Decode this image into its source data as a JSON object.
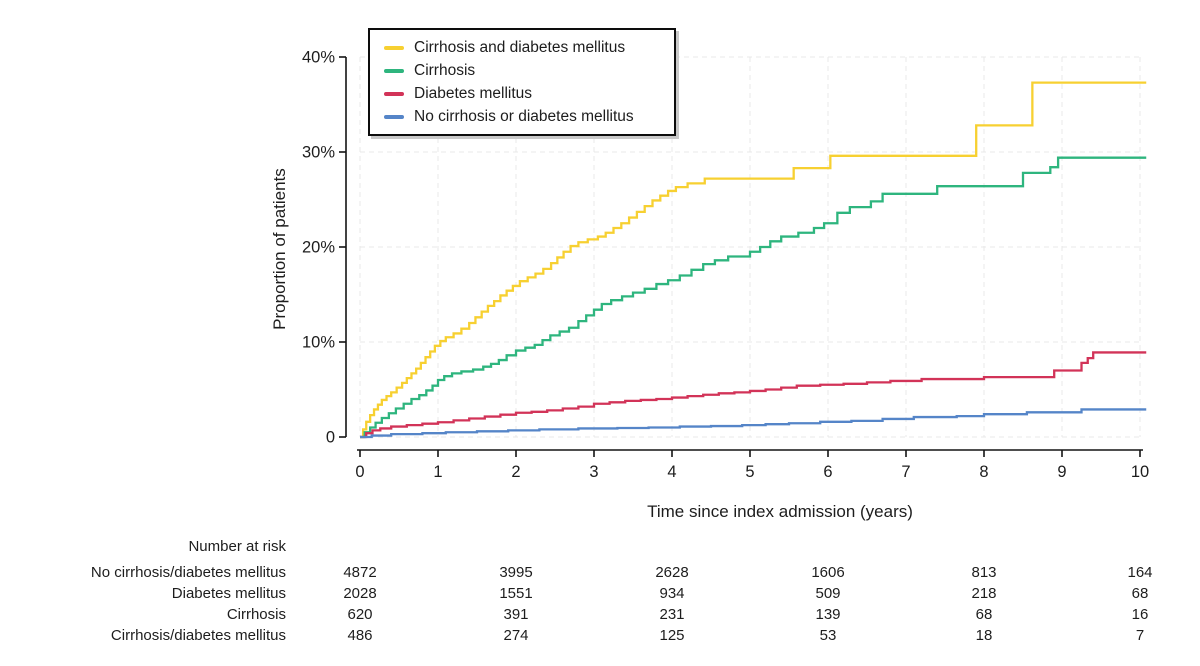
{
  "chart_data": {
    "type": "line",
    "subtype": "kaplan-meier-step-curves",
    "title": "",
    "xlabel": "Time since index admission (years)",
    "ylabel": "Proportion of patients",
    "xlim": [
      0,
      10.08
    ],
    "ylim": [
      0,
      40
    ],
    "x_ticks": [
      0,
      1,
      2,
      3,
      4,
      5,
      6,
      7,
      8,
      9,
      10
    ],
    "y_ticks": [
      {
        "value": 0,
        "label": "0"
      },
      {
        "value": 10,
        "label": "10%"
      },
      {
        "value": 20,
        "label": "20%"
      },
      {
        "value": 30,
        "label": "30%"
      },
      {
        "value": 40,
        "label": "40%"
      }
    ],
    "grid": "dashed gridlines at every year (vertical) and every 10% (horizontal)",
    "legend_position": "top-left inside plot, boxed",
    "step_mode": "step-after",
    "series": [
      {
        "name": "Cirrhosis and diabetes mellitus",
        "color": "#f7d031",
        "points": [
          [
            0,
            0
          ],
          [
            0.04,
            0.8
          ],
          [
            0.08,
            1.6
          ],
          [
            0.13,
            2.3
          ],
          [
            0.18,
            2.9
          ],
          [
            0.23,
            3.4
          ],
          [
            0.28,
            3.9
          ],
          [
            0.34,
            4.3
          ],
          [
            0.4,
            4.7
          ],
          [
            0.47,
            5.2
          ],
          [
            0.54,
            5.7
          ],
          [
            0.6,
            6.2
          ],
          [
            0.66,
            6.7
          ],
          [
            0.72,
            7.2
          ],
          [
            0.78,
            7.8
          ],
          [
            0.84,
            8.4
          ],
          [
            0.9,
            9.0
          ],
          [
            0.96,
            9.6
          ],
          [
            1.03,
            10.1
          ],
          [
            1.1,
            10.5
          ],
          [
            1.2,
            10.9
          ],
          [
            1.3,
            11.4
          ],
          [
            1.4,
            12.0
          ],
          [
            1.48,
            12.6
          ],
          [
            1.56,
            13.2
          ],
          [
            1.64,
            13.8
          ],
          [
            1.72,
            14.3
          ],
          [
            1.8,
            14.9
          ],
          [
            1.88,
            15.4
          ],
          [
            1.96,
            15.9
          ],
          [
            2.05,
            16.4
          ],
          [
            2.15,
            16.8
          ],
          [
            2.25,
            17.2
          ],
          [
            2.35,
            17.7
          ],
          [
            2.45,
            18.3
          ],
          [
            2.53,
            18.9
          ],
          [
            2.61,
            19.5
          ],
          [
            2.7,
            20.1
          ],
          [
            2.8,
            20.5
          ],
          [
            2.92,
            20.8
          ],
          [
            3.05,
            21.1
          ],
          [
            3.15,
            21.5
          ],
          [
            3.25,
            22.0
          ],
          [
            3.35,
            22.5
          ],
          [
            3.45,
            23.1
          ],
          [
            3.55,
            23.7
          ],
          [
            3.65,
            24.3
          ],
          [
            3.75,
            24.9
          ],
          [
            3.85,
            25.4
          ],
          [
            3.95,
            25.9
          ],
          [
            4.05,
            26.3
          ],
          [
            4.2,
            26.7
          ],
          [
            4.42,
            27.2
          ],
          [
            5.56,
            28.3
          ],
          [
            6.03,
            29.6
          ],
          [
            7.9,
            32.8
          ],
          [
            8.62,
            37.3
          ]
        ]
      },
      {
        "name": "Cirrhosis",
        "color": "#2eb57e",
        "points": [
          [
            0,
            0
          ],
          [
            0.06,
            0.5
          ],
          [
            0.13,
            1.0
          ],
          [
            0.2,
            1.5
          ],
          [
            0.28,
            2.0
          ],
          [
            0.37,
            2.5
          ],
          [
            0.46,
            3.0
          ],
          [
            0.56,
            3.5
          ],
          [
            0.66,
            4.0
          ],
          [
            0.76,
            4.4
          ],
          [
            0.85,
            4.9
          ],
          [
            0.93,
            5.4
          ],
          [
            1.0,
            6.0
          ],
          [
            1.08,
            6.4
          ],
          [
            1.18,
            6.7
          ],
          [
            1.3,
            6.9
          ],
          [
            1.45,
            7.1
          ],
          [
            1.58,
            7.4
          ],
          [
            1.68,
            7.7
          ],
          [
            1.78,
            8.1
          ],
          [
            1.88,
            8.6
          ],
          [
            2.0,
            9.1
          ],
          [
            2.12,
            9.4
          ],
          [
            2.24,
            9.7
          ],
          [
            2.34,
            10.2
          ],
          [
            2.44,
            10.7
          ],
          [
            2.56,
            11.1
          ],
          [
            2.68,
            11.5
          ],
          [
            2.8,
            12.2
          ],
          [
            2.9,
            12.8
          ],
          [
            3.0,
            13.4
          ],
          [
            3.1,
            14.0
          ],
          [
            3.22,
            14.4
          ],
          [
            3.36,
            14.8
          ],
          [
            3.5,
            15.2
          ],
          [
            3.65,
            15.6
          ],
          [
            3.8,
            16.1
          ],
          [
            3.95,
            16.5
          ],
          [
            4.1,
            17.0
          ],
          [
            4.25,
            17.6
          ],
          [
            4.4,
            18.2
          ],
          [
            4.55,
            18.6
          ],
          [
            4.72,
            19.0
          ],
          [
            5.0,
            19.5
          ],
          [
            5.13,
            20.0
          ],
          [
            5.26,
            20.6
          ],
          [
            5.4,
            21.1
          ],
          [
            5.62,
            21.5
          ],
          [
            5.82,
            22.0
          ],
          [
            5.95,
            22.5
          ],
          [
            6.12,
            23.6
          ],
          [
            6.28,
            24.2
          ],
          [
            6.55,
            24.8
          ],
          [
            6.7,
            25.6
          ],
          [
            7.4,
            26.4
          ],
          [
            8.5,
            27.8
          ],
          [
            8.85,
            28.4
          ],
          [
            8.95,
            29.4
          ]
        ]
      },
      {
        "name": "Diabetes mellitus",
        "color": "#d23358",
        "points": [
          [
            0,
            0
          ],
          [
            0.08,
            0.4
          ],
          [
            0.16,
            0.7
          ],
          [
            0.26,
            0.9
          ],
          [
            0.4,
            1.1
          ],
          [
            0.6,
            1.25
          ],
          [
            0.8,
            1.4
          ],
          [
            1.0,
            1.55
          ],
          [
            1.2,
            1.75
          ],
          [
            1.4,
            1.95
          ],
          [
            1.6,
            2.15
          ],
          [
            1.8,
            2.35
          ],
          [
            2.0,
            2.55
          ],
          [
            2.2,
            2.65
          ],
          [
            2.4,
            2.8
          ],
          [
            2.6,
            3.0
          ],
          [
            2.8,
            3.2
          ],
          [
            3.0,
            3.5
          ],
          [
            3.2,
            3.65
          ],
          [
            3.4,
            3.8
          ],
          [
            3.6,
            3.9
          ],
          [
            3.8,
            4.0
          ],
          [
            4.0,
            4.15
          ],
          [
            4.2,
            4.3
          ],
          [
            4.4,
            4.45
          ],
          [
            4.6,
            4.6
          ],
          [
            4.8,
            4.7
          ],
          [
            5.0,
            4.85
          ],
          [
            5.2,
            5.0
          ],
          [
            5.4,
            5.2
          ],
          [
            5.6,
            5.4
          ],
          [
            5.9,
            5.5
          ],
          [
            6.2,
            5.6
          ],
          [
            6.5,
            5.75
          ],
          [
            6.8,
            5.9
          ],
          [
            7.2,
            6.1
          ],
          [
            8.0,
            6.3
          ],
          [
            8.9,
            7.0
          ],
          [
            9.25,
            7.8
          ],
          [
            9.33,
            8.3
          ],
          [
            9.4,
            8.9
          ]
        ]
      },
      {
        "name": "No cirrhosis or diabetes mellitus",
        "color": "#5585c8",
        "points": [
          [
            0,
            0
          ],
          [
            0.15,
            0.15
          ],
          [
            0.4,
            0.3
          ],
          [
            0.8,
            0.4
          ],
          [
            1.1,
            0.5
          ],
          [
            1.5,
            0.6
          ],
          [
            1.9,
            0.7
          ],
          [
            2.3,
            0.8
          ],
          [
            2.8,
            0.9
          ],
          [
            3.3,
            0.95
          ],
          [
            3.7,
            1.0
          ],
          [
            4.1,
            1.1
          ],
          [
            4.5,
            1.15
          ],
          [
            4.9,
            1.25
          ],
          [
            5.2,
            1.35
          ],
          [
            5.5,
            1.45
          ],
          [
            5.9,
            1.6
          ],
          [
            6.3,
            1.7
          ],
          [
            6.7,
            1.9
          ],
          [
            7.1,
            2.1
          ],
          [
            7.65,
            2.2
          ],
          [
            8.0,
            2.4
          ],
          [
            8.55,
            2.6
          ],
          [
            9.25,
            2.9
          ]
        ]
      }
    ]
  },
  "legend": {
    "items": [
      {
        "label": "Cirrhosis and diabetes mellitus",
        "color": "#f7d031"
      },
      {
        "label": "Cirrhosis",
        "color": "#2eb57e"
      },
      {
        "label": "Diabetes mellitus",
        "color": "#d23358"
      },
      {
        "label": "No cirrhosis or diabetes mellitus",
        "color": "#5585c8"
      }
    ]
  },
  "risk_table": {
    "title": "Number at risk",
    "time_points": [
      0,
      2,
      4,
      6,
      8,
      10
    ],
    "rows": [
      {
        "label": "No cirrhosis/diabetes mellitus",
        "values": [
          "4872",
          "3995",
          "2628",
          "1606",
          "813",
          "164"
        ]
      },
      {
        "label": "Diabetes mellitus",
        "values": [
          "2028",
          "1551",
          "934",
          "509",
          "218",
          "68"
        ]
      },
      {
        "label": "Cirrhosis",
        "values": [
          "620",
          "391",
          "231",
          "139",
          "68",
          "16"
        ]
      },
      {
        "label": "Cirrhosis/diabetes mellitus",
        "values": [
          "486",
          "274",
          "125",
          "53",
          "18",
          "7"
        ]
      }
    ]
  },
  "style": {
    "axis_color": "#141414",
    "grid_color": "#e8e8e8",
    "text_color": "#1d1d1d"
  }
}
